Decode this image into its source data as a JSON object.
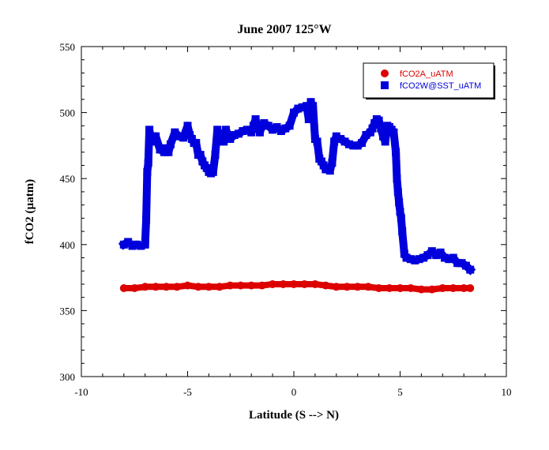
{
  "chart_data": {
    "type": "scatter",
    "title": "June 2007 125°W",
    "xlabel": "Latitude (S --> N)",
    "ylabel": "fCO2 (µatm)",
    "xlim": [
      -10,
      10
    ],
    "ylim": [
      300,
      550
    ],
    "xticks": [
      -10,
      -5,
      0,
      5,
      10
    ],
    "yticks": [
      300,
      350,
      400,
      450,
      500,
      550
    ],
    "grid": false,
    "legend_position": "top-right",
    "series": [
      {
        "name": "fCO2A_uATM",
        "color": "#dd0000",
        "marker": "circle",
        "x": [
          -8.0,
          -7.5,
          -7.0,
          -6.5,
          -6.0,
          -5.5,
          -5.0,
          -4.5,
          -4.0,
          -3.5,
          -3.0,
          -2.5,
          -2.0,
          -1.5,
          -1.0,
          -0.5,
          0.0,
          0.5,
          1.0,
          1.5,
          2.0,
          2.5,
          3.0,
          3.5,
          4.0,
          4.5,
          5.0,
          5.5,
          6.0,
          6.5,
          7.0,
          7.5,
          8.0,
          8.3
        ],
        "y": [
          367,
          367,
          368,
          368,
          368,
          368,
          369,
          368,
          368,
          368,
          369,
          369,
          369,
          369,
          370,
          370,
          370,
          370,
          370,
          369,
          368,
          368,
          368,
          368,
          367,
          367,
          367,
          367,
          366,
          366,
          367,
          367,
          367,
          367
        ]
      },
      {
        "name": "fCO2W@SST_uATM",
        "color": "#0000dd",
        "marker": "square",
        "x": [
          -8.0,
          -7.8,
          -7.6,
          -7.4,
          -7.2,
          -7.0,
          -6.95,
          -6.9,
          -6.85,
          -6.8,
          -6.7,
          -6.6,
          -6.5,
          -6.3,
          -6.1,
          -6.0,
          -5.9,
          -5.8,
          -5.6,
          -5.4,
          -5.2,
          -5.0,
          -4.9,
          -4.8,
          -4.7,
          -4.6,
          -4.5,
          -4.4,
          -4.3,
          -4.2,
          -4.1,
          -4.0,
          -3.9,
          -3.8,
          -3.7,
          -3.6,
          -3.5,
          -3.4,
          -3.3,
          -3.2,
          -3.0,
          -2.8,
          -2.6,
          -2.4,
          -2.2,
          -2.0,
          -1.9,
          -1.8,
          -1.7,
          -1.6,
          -1.5,
          -1.4,
          -1.2,
          -1.0,
          -0.8,
          -0.6,
          -0.4,
          -0.2,
          0.0,
          0.2,
          0.4,
          0.6,
          0.7,
          0.8,
          0.9,
          1.0,
          1.1,
          1.2,
          1.3,
          1.4,
          1.5,
          1.6,
          1.7,
          1.8,
          1.9,
          2.0,
          2.1,
          2.2,
          2.4,
          2.6,
          2.8,
          3.0,
          3.2,
          3.4,
          3.6,
          3.7,
          3.8,
          3.9,
          4.0,
          4.1,
          4.2,
          4.3,
          4.4,
          4.5,
          4.6,
          4.7,
          4.8,
          4.85,
          4.9,
          4.95,
          5.0,
          5.05,
          5.1,
          5.2,
          5.3,
          5.5,
          5.7,
          5.9,
          6.1,
          6.3,
          6.5,
          6.7,
          6.9,
          7.1,
          7.3,
          7.5,
          7.7,
          7.9,
          8.1,
          8.3
        ],
        "y": [
          400,
          402,
          399,
          400,
          399,
          400,
          419,
          455,
          462,
          487,
          478,
          482,
          482,
          472,
          470,
          473,
          470,
          476,
          485,
          482,
          481,
          490,
          483,
          480,
          477,
          477,
          468,
          468,
          463,
          460,
          458,
          455,
          454,
          455,
          468,
          487,
          483,
          480,
          478,
          487,
          480,
          483,
          484,
          486,
          487,
          485,
          490,
          495,
          488,
          485,
          490,
          492,
          490,
          487,
          489,
          486,
          488,
          490,
          500,
          503,
          504,
          505,
          495,
          508,
          505,
          480,
          478,
          465,
          463,
          460,
          457,
          458,
          456,
          462,
          478,
          482,
          480,
          480,
          478,
          476,
          475,
          475,
          477,
          483,
          485,
          488,
          492,
          495,
          494,
          488,
          482,
          478,
          490,
          489,
          487,
          485,
          470,
          450,
          440,
          432,
          425,
          420,
          410,
          393,
          390,
          389,
          388,
          389,
          390,
          392,
          395,
          392,
          394,
          390,
          389,
          390,
          386,
          386,
          384,
          381
        ]
      }
    ]
  },
  "colors": {
    "background": "#ffffff",
    "axis": "#000000"
  }
}
